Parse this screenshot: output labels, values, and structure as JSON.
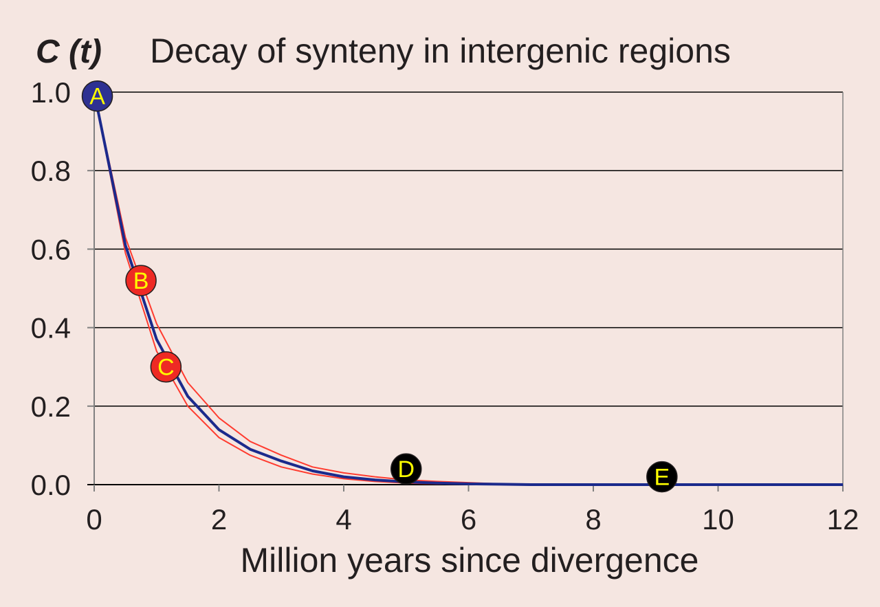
{
  "chart_data": {
    "type": "line",
    "title": "Decay of synteny in intergenic regions",
    "ylabel": "C (t)",
    "xlabel": "Million years since divergence",
    "xlim": [
      0,
      12
    ],
    "ylim": [
      0,
      1.0
    ],
    "xticks": [
      "0",
      "2",
      "4",
      "6",
      "8",
      "10",
      "12"
    ],
    "yticks": [
      "0.0",
      "0.2",
      "0.4",
      "0.6",
      "0.8",
      "1.0"
    ],
    "grid": "horizontal",
    "series": [
      {
        "role": "main",
        "color": "#1b2a8c",
        "x": [
          0,
          0.5,
          1.0,
          1.5,
          2.0,
          2.5,
          3.0,
          3.5,
          4.0,
          4.5,
          5.0,
          5.5,
          6.0,
          6.5,
          7.0,
          8.0,
          9.0,
          10.0,
          11.0,
          12.0
        ],
        "y": [
          1.0,
          0.61,
          0.37,
          0.225,
          0.14,
          0.09,
          0.06,
          0.035,
          0.02,
          0.012,
          0.007,
          0.004,
          0.002,
          0.001,
          0.0,
          0.0,
          0.0,
          0.0,
          0.0,
          0.0
        ]
      },
      {
        "role": "upper-bound",
        "color": "#ff3b2f",
        "x": [
          0,
          0.5,
          1.0,
          1.5,
          2.0,
          2.5,
          3.0,
          3.5,
          4.0,
          4.5,
          5.0,
          5.5,
          6.0,
          6.5,
          7.0,
          8.0,
          9.0,
          10.0,
          11.0,
          12.0
        ],
        "y": [
          1.0,
          0.63,
          0.41,
          0.26,
          0.17,
          0.11,
          0.075,
          0.045,
          0.03,
          0.02,
          0.012,
          0.008,
          0.005,
          0.002,
          0.001,
          0.0,
          0.0,
          0.0,
          0.0,
          0.0
        ]
      },
      {
        "role": "lower-bound",
        "color": "#ff3b2f",
        "x": [
          0,
          0.5,
          1.0,
          1.5,
          2.0,
          2.5,
          3.0,
          3.5,
          4.0,
          4.5,
          5.0,
          5.5,
          6.0,
          6.5,
          7.0,
          8.0,
          9.0,
          10.0,
          11.0,
          12.0
        ],
        "y": [
          1.0,
          0.59,
          0.34,
          0.2,
          0.12,
          0.075,
          0.045,
          0.027,
          0.015,
          0.008,
          0.004,
          0.002,
          0.001,
          0.0,
          0.0,
          0.0,
          0.0,
          0.0,
          0.0,
          0.0
        ]
      }
    ],
    "points": [
      {
        "label": "A",
        "x": 0.05,
        "y": 0.99,
        "fill": "#2e3192",
        "text_color": "#ffff00"
      },
      {
        "label": "B",
        "x": 0.75,
        "y": 0.52,
        "fill": "#ee2a24",
        "text_color": "#ffff00"
      },
      {
        "label": "C",
        "x": 1.15,
        "y": 0.3,
        "fill": "#ee2a24",
        "text_color": "#ffff00"
      },
      {
        "label": "D",
        "x": 5.0,
        "y": 0.04,
        "fill": "#000000",
        "text_color": "#ffff00"
      },
      {
        "label": "E",
        "x": 9.1,
        "y": 0.02,
        "fill": "#000000",
        "text_color": "#ffff00"
      }
    ],
    "colors": {
      "background": "#f5e6e1",
      "gridline": "#000000",
      "axis": "#808080",
      "text": "#231f20"
    }
  }
}
